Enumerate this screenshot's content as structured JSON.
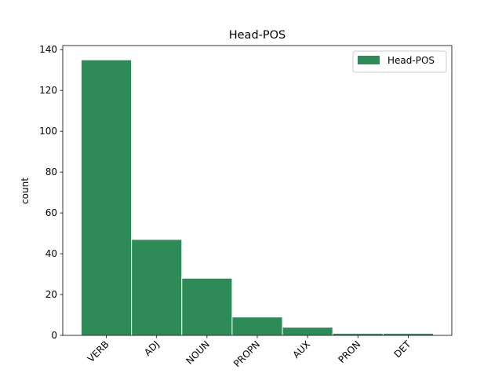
{
  "chart_data": {
    "type": "bar",
    "title": "Head-POS",
    "xlabel": "",
    "ylabel": "count",
    "categories": [
      "VERB",
      "ADJ",
      "NOUN",
      "PROPN",
      "AUX",
      "PRON",
      "DET"
    ],
    "series": [
      {
        "name": "Head-POS",
        "values": [
          135,
          47,
          28,
          9,
          4,
          1,
          1
        ]
      }
    ],
    "ylim": [
      0,
      142
    ],
    "yticks": [
      0,
      20,
      40,
      60,
      80,
      100,
      120,
      140
    ],
    "bar_color": "#2e8b57",
    "bar_edge_color": "#ffffff",
    "grid": false,
    "legend_position": "top-right",
    "xtick_rotation": 45
  }
}
